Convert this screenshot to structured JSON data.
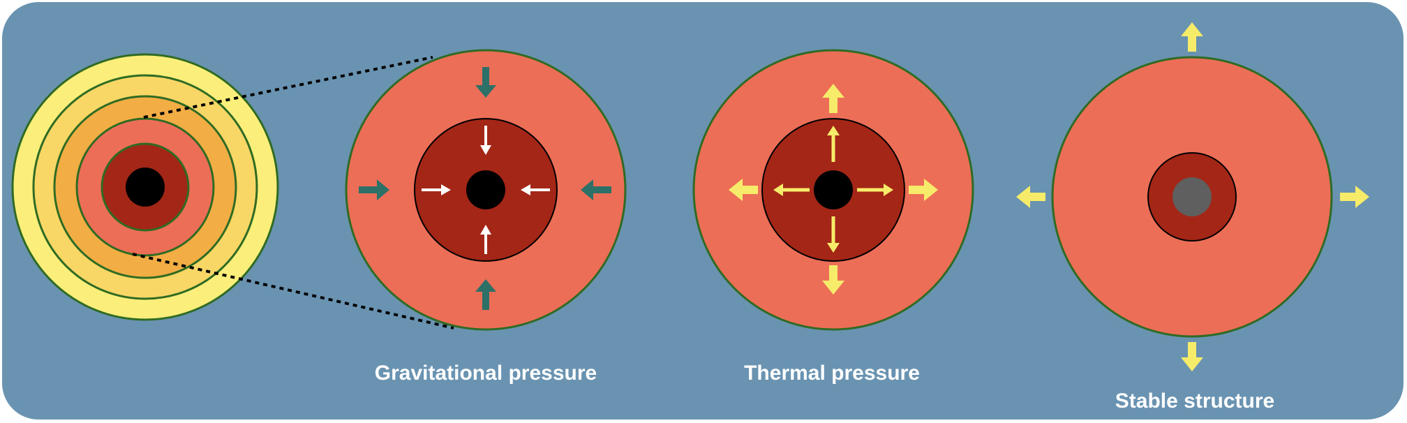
{
  "captions": {
    "gravitational": "Gravitational pressure",
    "thermal": "Thermal pressure",
    "stable": "Stable structure"
  },
  "colors": {
    "background": "#6a93b2",
    "outer_yellow": "#fbee7a",
    "orange_shell": "#f2ae45",
    "red_envelope": "#ec6e57",
    "dark_red_core": "#a42616",
    "black_center": "#000000",
    "gray_center": "#5f5f5f",
    "teal_arrow": "#2d7068",
    "yellow_arrow": "#f7eb6a",
    "white_arrow": "#ffffff",
    "outline_green": "#2f6b22"
  },
  "icons": {
    "gravity_arrows": "inward-arrow",
    "thermal_arrows": "outward-arrow",
    "stable_arrows": "outward-arrow"
  }
}
